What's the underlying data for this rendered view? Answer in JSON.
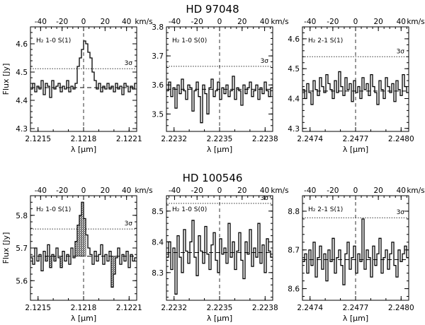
{
  "figure": {
    "rows": [
      {
        "title": "HD 97048"
      },
      {
        "title": "HD 100546"
      }
    ]
  },
  "chart_data": [
    {
      "type": "line",
      "row": 0,
      "col": 0,
      "label": "H₂ 1-0 S(1)",
      "xlabel": "λ [μm]",
      "ylabel": "Flux [Jy]",
      "top_unit": "km/s",
      "xlim": [
        2.12145,
        2.12215
      ],
      "ylim": [
        4.29,
        4.66
      ],
      "xticks": [
        2.1215,
        2.1218,
        2.1221
      ],
      "xtick_labels": [
        "2.1215",
        "2.1218",
        "2.1221"
      ],
      "yticks": [
        4.3,
        4.4,
        4.5,
        4.6
      ],
      "ytick_labels": [
        "4.3",
        "4.4",
        "4.5",
        "4.6"
      ],
      "center": 2.1218,
      "vel_ticks": [
        -40,
        -20,
        0,
        20,
        40
      ],
      "sigma_level": 4.512,
      "sigma_label": "3σ",
      "continuum": 4.445,
      "hatched": [],
      "y": [
        4.44,
        4.46,
        4.43,
        4.45,
        4.44,
        4.47,
        4.42,
        4.46,
        4.45,
        4.41,
        4.47,
        4.44,
        4.45,
        4.46,
        4.43,
        4.45,
        4.44,
        4.47,
        4.43,
        4.45,
        4.44,
        4.46,
        4.52,
        4.55,
        4.58,
        4.61,
        4.6,
        4.57,
        4.55,
        4.5,
        4.47,
        4.44,
        4.46,
        4.43,
        4.45,
        4.44,
        4.46,
        4.44,
        4.45,
        4.43,
        4.46,
        4.44,
        4.45,
        4.42,
        4.46,
        4.45,
        4.43,
        4.45,
        4.44,
        4.46
      ]
    },
    {
      "type": "line",
      "row": 0,
      "col": 1,
      "label": "H₂ 1-0 S(0)",
      "xlabel": "λ [μm]",
      "ylabel": "",
      "top_unit": "km/s",
      "xlim": [
        2.22315,
        2.22385
      ],
      "ylim": [
        3.44,
        3.8
      ],
      "xticks": [
        2.2232,
        2.2235,
        2.2238
      ],
      "xtick_labels": [
        "2.2232",
        "2.2235",
        "2.2238"
      ],
      "yticks": [
        3.5,
        3.6,
        3.7,
        3.8
      ],
      "ytick_labels": [
        "3.5",
        "3.6",
        "3.7",
        "3.8"
      ],
      "center": 2.2235,
      "vel_ticks": [
        -40,
        -20,
        0,
        20,
        40
      ],
      "sigma_level": 3.664,
      "sigma_label": "3σ",
      "continuum": 3.585,
      "hatched": [],
      "y": [
        3.58,
        3.61,
        3.56,
        3.59,
        3.52,
        3.6,
        3.57,
        3.62,
        3.58,
        3.55,
        3.6,
        3.59,
        3.51,
        3.58,
        3.61,
        3.56,
        3.47,
        3.6,
        3.57,
        3.5,
        3.59,
        3.62,
        3.56,
        3.58,
        3.61,
        3.55,
        3.59,
        3.57,
        3.6,
        3.56,
        3.58,
        3.63,
        3.55,
        3.59,
        3.58,
        3.53,
        3.6,
        3.57,
        3.59,
        3.61,
        3.56,
        3.58,
        3.6,
        3.55,
        3.59,
        3.57,
        3.61,
        3.58,
        3.56,
        3.59
      ]
    },
    {
      "type": "line",
      "row": 0,
      "col": 2,
      "label": "H₂ 2-1 S(1)",
      "xlabel": "λ [μm]",
      "ylabel": "",
      "top_unit": "km/s",
      "xlim": [
        2.24735,
        2.24805
      ],
      "ylim": [
        4.29,
        4.64
      ],
      "xticks": [
        2.2474,
        2.2477,
        2.248
      ],
      "xtick_labels": [
        "2.2474",
        "2.2477",
        "2.2480"
      ],
      "yticks": [
        4.3,
        4.4,
        4.5,
        4.6
      ],
      "ytick_labels": [
        "4.3",
        "4.4",
        "4.5",
        "4.6"
      ],
      "center": 2.2477,
      "vel_ticks": [
        -40,
        -20,
        0,
        20,
        40
      ],
      "sigma_level": 4.54,
      "sigma_label": "3σ",
      "continuum": 4.425,
      "hatched": [],
      "y": [
        4.43,
        4.4,
        4.45,
        4.42,
        4.38,
        4.46,
        4.43,
        4.41,
        4.47,
        4.44,
        4.42,
        4.48,
        4.45,
        4.43,
        4.4,
        4.46,
        4.42,
        4.49,
        4.44,
        4.41,
        4.47,
        4.43,
        4.45,
        4.39,
        4.46,
        4.42,
        4.44,
        4.4,
        4.47,
        4.43,
        4.45,
        4.41,
        4.48,
        4.44,
        4.42,
        4.38,
        4.46,
        4.43,
        4.4,
        4.47,
        4.44,
        4.42,
        4.45,
        4.39,
        4.46,
        4.43,
        4.41,
        4.48,
        4.44,
        4.42
      ]
    },
    {
      "type": "line",
      "row": 1,
      "col": 0,
      "label": "H₂ 1-0 S(1)",
      "xlabel": "λ [μm]",
      "ylabel": "Flux [Jy]",
      "top_unit": "km/s",
      "xlim": [
        2.12145,
        2.12215
      ],
      "ylim": [
        5.54,
        5.86
      ],
      "xticks": [
        2.1215,
        2.1218,
        2.1221
      ],
      "xtick_labels": [
        "2.1215",
        "2.1218",
        "2.1221"
      ],
      "yticks": [
        5.6,
        5.7,
        5.8
      ],
      "ytick_labels": [
        "5.6",
        "5.7",
        "5.8"
      ],
      "center": 2.1218,
      "vel_ticks": [
        -40,
        -20,
        0,
        20,
        40
      ],
      "sigma_level": 5.758,
      "sigma_label": "3σ",
      "continuum": 5.675,
      "hatched": [
        7,
        9,
        11,
        14,
        21,
        22,
        23,
        24,
        25,
        38,
        39
      ],
      "y": [
        5.67,
        5.65,
        5.7,
        5.66,
        5.68,
        5.63,
        5.69,
        5.66,
        5.71,
        5.64,
        5.68,
        5.66,
        5.7,
        5.67,
        5.64,
        5.69,
        5.66,
        5.68,
        5.65,
        5.7,
        5.67,
        5.72,
        5.77,
        5.8,
        5.84,
        5.79,
        5.74,
        5.7,
        5.68,
        5.65,
        5.69,
        5.66,
        5.68,
        5.71,
        5.65,
        5.68,
        5.66,
        5.69,
        5.58,
        5.62,
        5.67,
        5.7,
        5.65,
        5.68,
        5.66,
        5.69,
        5.64,
        5.68,
        5.66,
        5.67
      ]
    },
    {
      "type": "line",
      "row": 1,
      "col": 1,
      "label": "H₂ 1-0 S(0)",
      "xlabel": "λ [μm]",
      "ylabel": "",
      "top_unit": "km/s",
      "xlim": [
        2.22315,
        2.22385
      ],
      "ylim": [
        8.21,
        8.55
      ],
      "xticks": [
        2.2232,
        2.2235,
        2.2238
      ],
      "xtick_labels": [
        "2.2232",
        "2.2235",
        "2.2238"
      ],
      "yticks": [
        8.3,
        8.4,
        8.5
      ],
      "ytick_labels": [
        "8.3",
        "8.4",
        "8.5"
      ],
      "center": 2.2235,
      "vel_ticks": [
        -40,
        -20,
        0,
        20,
        40
      ],
      "sigma_level": 8.525,
      "sigma_label": "3σ",
      "continuum": 8.365,
      "hatched": [],
      "y": [
        8.35,
        8.4,
        8.31,
        8.38,
        8.23,
        8.42,
        8.35,
        8.3,
        8.44,
        8.37,
        8.33,
        8.4,
        8.47,
        8.35,
        8.29,
        8.42,
        8.37,
        8.33,
        8.45,
        8.36,
        8.31,
        8.39,
        8.43,
        8.34,
        8.3,
        8.41,
        8.36,
        8.38,
        8.33,
        8.46,
        8.35,
        8.4,
        8.31,
        8.37,
        8.43,
        8.34,
        8.28,
        8.4,
        8.36,
        8.44,
        8.32,
        8.38,
        8.35,
        8.46,
        8.33,
        8.39,
        8.3,
        8.41,
        8.37,
        8.35
      ]
    },
    {
      "type": "line",
      "row": 1,
      "col": 2,
      "label": "H₂ 2-1 S(1)",
      "xlabel": "λ [μm]",
      "ylabel": "",
      "top_unit": "km/s",
      "xlim": [
        2.24735,
        2.24805
      ],
      "ylim": [
        8.57,
        8.84
      ],
      "xticks": [
        2.2474,
        2.2477,
        2.248
      ],
      "xtick_labels": [
        "2.2474",
        "2.2477",
        "2.2480"
      ],
      "yticks": [
        8.6,
        8.7,
        8.8
      ],
      "ytick_labels": [
        "8.6",
        "8.7",
        "8.8"
      ],
      "center": 2.2477,
      "vel_ticks": [
        -40,
        -20,
        0,
        20,
        40
      ],
      "sigma_level": 8.783,
      "sigma_label": "3σ",
      "continuum": 8.675,
      "hatched": [],
      "y": [
        8.67,
        8.69,
        8.64,
        8.7,
        8.66,
        8.72,
        8.63,
        8.68,
        8.71,
        8.65,
        8.69,
        8.62,
        8.7,
        8.67,
        8.73,
        8.64,
        8.68,
        8.7,
        8.66,
        8.61,
        8.69,
        8.72,
        8.65,
        8.68,
        8.71,
        8.64,
        8.69,
        8.67,
        8.78,
        8.65,
        8.7,
        8.68,
        8.63,
        8.71,
        8.66,
        8.69,
        8.73,
        8.64,
        8.68,
        8.7,
        8.65,
        8.69,
        8.72,
        8.66,
        8.63,
        8.7,
        8.67,
        8.69,
        8.71,
        8.68
      ]
    }
  ]
}
